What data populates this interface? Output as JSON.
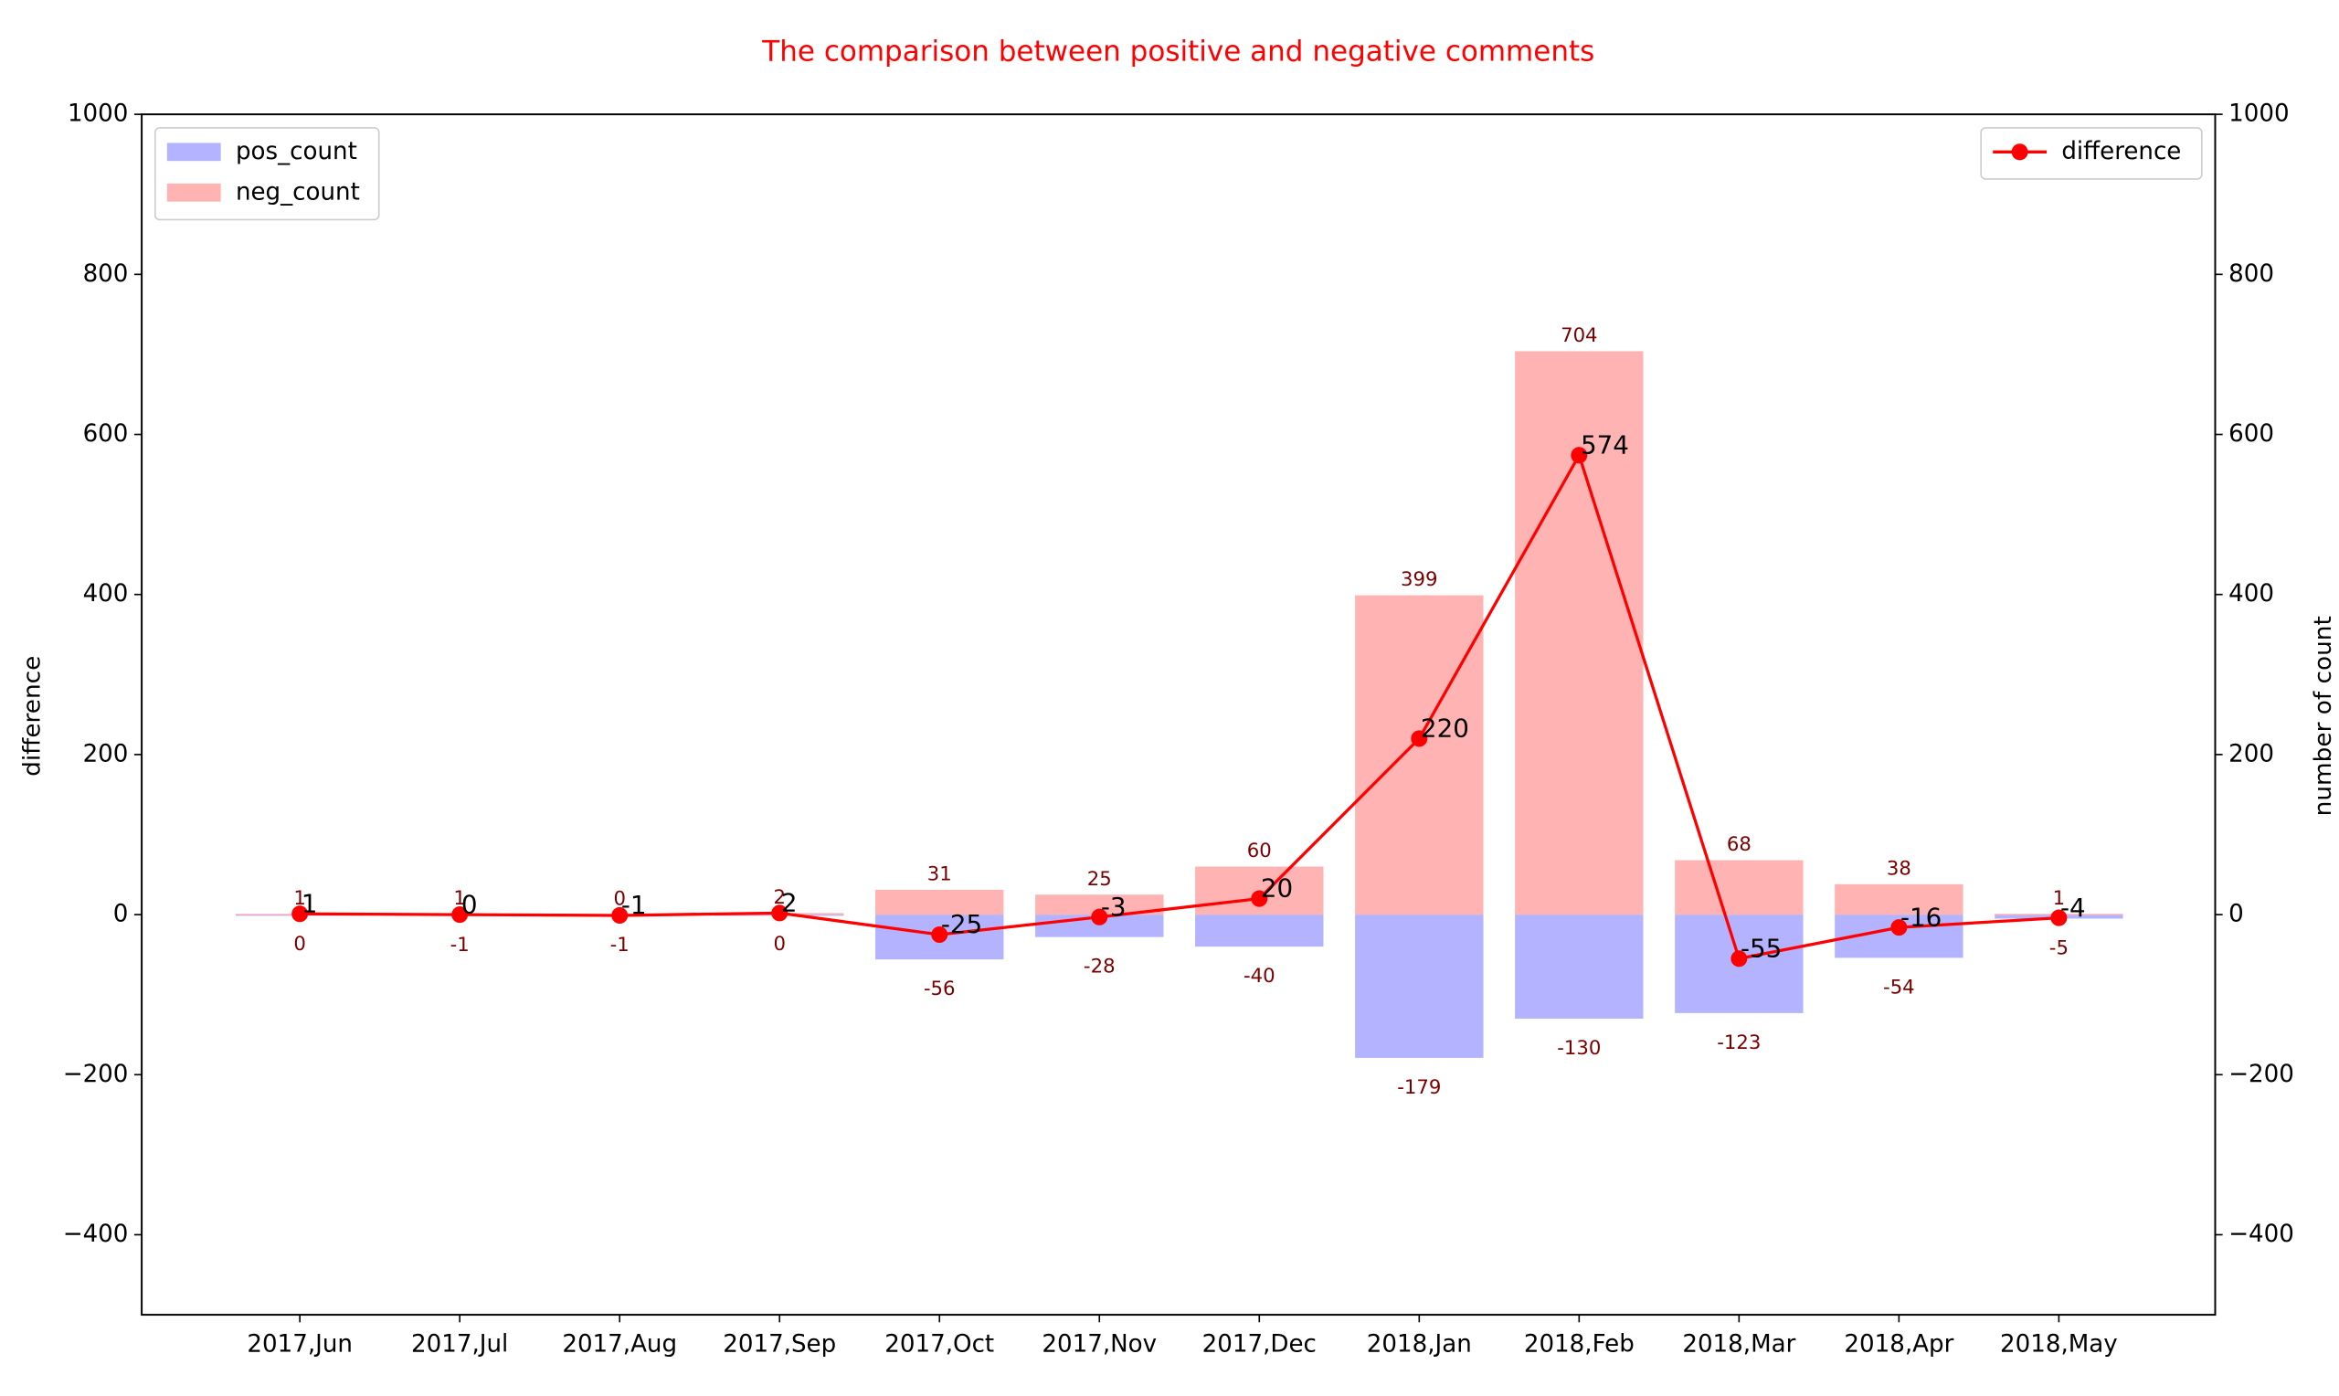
{
  "chart_data": {
    "type": "bar",
    "title": "The comparison between positive and negative comments",
    "ylabel": "difference",
    "y2label": "number of count",
    "categories": [
      "2017,Jun",
      "2017,Jul",
      "2017,Aug",
      "2017,Sep",
      "2017,Oct",
      "2017,Nov",
      "2017,Dec",
      "2018,Jan",
      "2018,Feb",
      "2018,Mar",
      "2018,Apr",
      "2018,May"
    ],
    "series": [
      {
        "name": "pos_count",
        "color": "#b3b3ff",
        "axis": "y2",
        "values": [
          0,
          -1,
          -1,
          0,
          -56,
          -28,
          -40,
          -179,
          -130,
          -123,
          -54,
          -5
        ]
      },
      {
        "name": "neg_count",
        "color": "#ffb3b3",
        "axis": "y2",
        "values": [
          1,
          1,
          0,
          2,
          31,
          25,
          60,
          399,
          704,
          68,
          38,
          1
        ]
      },
      {
        "name": "difference",
        "color": "#ff0000",
        "type": "line",
        "axis": "y",
        "values": [
          1,
          0,
          -1,
          2,
          -25,
          -3,
          20,
          220,
          574,
          -55,
          -16,
          -4
        ]
      }
    ],
    "ylim": [
      -500,
      1000
    ],
    "yticks": [
      {
        "value": -400,
        "label": "−400"
      },
      {
        "value": -200,
        "label": "−200"
      },
      0,
      200,
      400,
      600,
      800,
      1000
    ],
    "y2lim": [
      -500,
      1000
    ],
    "y2ticks": [
      {
        "value": -400,
        "label": "−400"
      },
      {
        "value": -200,
        "label": "−200"
      },
      0,
      200,
      400,
      600,
      800,
      1000
    ],
    "legend_loc": "upper left",
    "legend2_loc": "upper right"
  }
}
